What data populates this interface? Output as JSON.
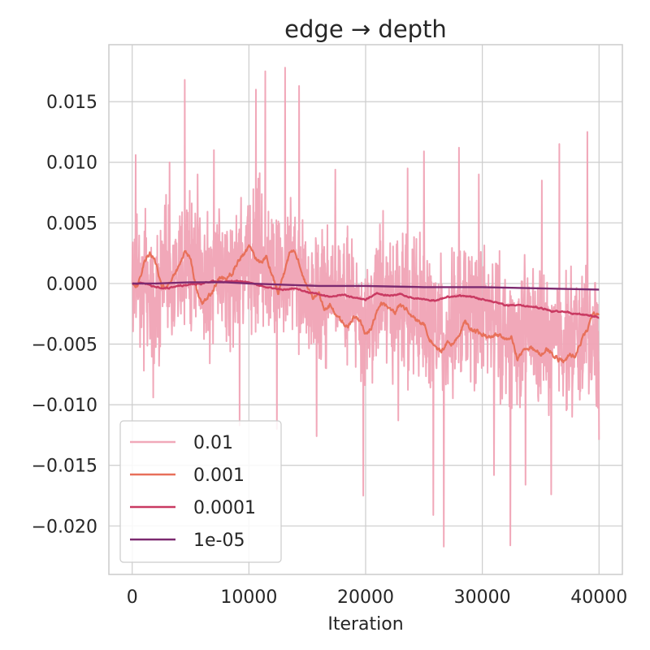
{
  "chart_data": {
    "type": "line",
    "title": "edge → depth",
    "xlabel": "Iteration",
    "ylabel": "",
    "xlim": [
      -2000,
      42000
    ],
    "ylim": [
      -0.024,
      0.0197
    ],
    "xticks": [
      0,
      10000,
      20000,
      30000,
      40000
    ],
    "xtick_labels": [
      "0",
      "10000",
      "20000",
      "30000",
      "40000"
    ],
    "yticks": [
      0.015,
      0.01,
      0.005,
      0.0,
      -0.005,
      -0.01,
      -0.015,
      -0.02
    ],
    "ytick_labels": [
      "0.015",
      "0.010",
      "0.005",
      "0.000",
      "−0.005",
      "−0.010",
      "−0.015",
      "−0.020"
    ],
    "grid": true,
    "legend_position": "lower-left",
    "colors": {
      "grid": "#cccccc",
      "spine": "#cccccc",
      "text": "#262626"
    },
    "series": [
      {
        "name": "0.01",
        "color": "#f0a3b5",
        "alpha": 0.95,
        "width": 2,
        "noise": true,
        "amplitude": 0.0035,
        "spikes": [
          [
            300,
            0.0106
          ],
          [
            1000,
            -0.0072
          ],
          [
            1800,
            -0.0094
          ],
          [
            3200,
            0.01
          ],
          [
            4500,
            0.0168
          ],
          [
            5600,
            0.009
          ],
          [
            7000,
            0.011
          ],
          [
            9200,
            -0.0117
          ],
          [
            10600,
            0.016
          ],
          [
            11400,
            0.0175
          ],
          [
            12400,
            -0.012
          ],
          [
            13100,
            0.0178
          ],
          [
            14300,
            0.0163
          ],
          [
            15800,
            -0.0126
          ],
          [
            17400,
            0.0094
          ],
          [
            19800,
            -0.0175
          ],
          [
            21500,
            0.006
          ],
          [
            22800,
            -0.0113
          ],
          [
            23600,
            0.0095
          ],
          [
            25000,
            0.0109
          ],
          [
            25800,
            -0.0191
          ],
          [
            26700,
            -0.0217
          ],
          [
            28000,
            0.0112
          ],
          [
            29700,
            0.009
          ],
          [
            31000,
            -0.0158
          ],
          [
            32400,
            -0.0216
          ],
          [
            33700,
            -0.0166
          ],
          [
            35100,
            0.0085
          ],
          [
            35900,
            -0.0174
          ],
          [
            36600,
            0.0115
          ],
          [
            37700,
            -0.011
          ],
          [
            39000,
            0.0125
          ],
          [
            40000,
            -0.0129
          ]
        ],
        "points": [
          [
            0,
            0.0
          ],
          [
            1000,
            0.0005
          ],
          [
            2000,
            -0.0005
          ],
          [
            3000,
            0.0006
          ],
          [
            4000,
            0.0002
          ],
          [
            5000,
            0.0016
          ],
          [
            6000,
            0.0007
          ],
          [
            7000,
            -0.0002
          ],
          [
            8000,
            0.0003
          ],
          [
            9000,
            0.0012
          ],
          [
            10000,
            0.0013
          ],
          [
            11000,
            0.0028
          ],
          [
            12000,
            0.0006
          ],
          [
            13000,
            0.0014
          ],
          [
            14000,
            0.0012
          ],
          [
            15000,
            -0.0008
          ],
          [
            16000,
            -0.0013
          ],
          [
            17000,
            -0.0006
          ],
          [
            18000,
            -0.0017
          ],
          [
            19000,
            -0.0015
          ],
          [
            20000,
            -0.0032
          ],
          [
            21000,
            -0.0013
          ],
          [
            22000,
            -0.0016
          ],
          [
            23000,
            -0.0013
          ],
          [
            24000,
            -0.0024
          ],
          [
            25000,
            -0.0026
          ],
          [
            26000,
            -0.0034
          ],
          [
            27000,
            -0.0042
          ],
          [
            28000,
            -0.0025
          ],
          [
            29000,
            -0.0022
          ],
          [
            30000,
            -0.0028
          ],
          [
            31000,
            -0.0031
          ],
          [
            32000,
            -0.0042
          ],
          [
            33000,
            -0.0044
          ],
          [
            34000,
            -0.0038
          ],
          [
            35000,
            -0.0047
          ],
          [
            36000,
            -0.0052
          ],
          [
            37000,
            -0.0044
          ],
          [
            38000,
            -0.0046
          ],
          [
            39000,
            -0.0041
          ],
          [
            40000,
            -0.0045
          ]
        ]
      },
      {
        "name": "0.001",
        "color": "#e8705a",
        "alpha": 1,
        "width": 2.2,
        "noise": true,
        "amplitude": 0.0004,
        "points": [
          [
            0,
            0.0
          ],
          [
            500,
            -0.0002
          ],
          [
            1000,
            0.0017
          ],
          [
            1500,
            0.0025
          ],
          [
            2000,
            0.0017
          ],
          [
            2500,
            -0.0002
          ],
          [
            3000,
            -0.0003
          ],
          [
            3500,
            0.0006
          ],
          [
            4000,
            0.0014
          ],
          [
            4500,
            0.0027
          ],
          [
            5000,
            0.0021
          ],
          [
            5500,
            -0.0005
          ],
          [
            6000,
            -0.0017
          ],
          [
            6500,
            -0.0012
          ],
          [
            7000,
            -0.0004
          ],
          [
            7500,
            0.0005
          ],
          [
            8000,
            0.0004
          ],
          [
            8500,
            0.0008
          ],
          [
            9000,
            0.0017
          ],
          [
            9500,
            0.0023
          ],
          [
            10000,
            0.003
          ],
          [
            10500,
            0.0023
          ],
          [
            11000,
            0.0017
          ],
          [
            11500,
            0.0022
          ],
          [
            12000,
            0.0007
          ],
          [
            12500,
            -0.0007
          ],
          [
            13000,
            0.0008
          ],
          [
            13500,
            0.0025
          ],
          [
            14000,
            0.0026
          ],
          [
            14500,
            0.0011
          ],
          [
            15000,
            -0.0005
          ],
          [
            15500,
            -0.0012
          ],
          [
            16000,
            -0.0008
          ],
          [
            16500,
            -0.0021
          ],
          [
            17000,
            -0.0018
          ],
          [
            17500,
            -0.0028
          ],
          [
            18000,
            -0.0031
          ],
          [
            18500,
            -0.0036
          ],
          [
            19000,
            -0.0028
          ],
          [
            19500,
            -0.003
          ],
          [
            20000,
            -0.0042
          ],
          [
            20500,
            -0.0037
          ],
          [
            21000,
            -0.0021
          ],
          [
            21500,
            -0.0016
          ],
          [
            22000,
            -0.002
          ],
          [
            22500,
            -0.0024
          ],
          [
            23000,
            -0.0018
          ],
          [
            23500,
            -0.0021
          ],
          [
            24000,
            -0.0028
          ],
          [
            24500,
            -0.0031
          ],
          [
            25000,
            -0.0033
          ],
          [
            25500,
            -0.0046
          ],
          [
            26000,
            -0.0053
          ],
          [
            26500,
            -0.0057
          ],
          [
            27000,
            -0.0049
          ],
          [
            27500,
            -0.005
          ],
          [
            28000,
            -0.0042
          ],
          [
            28500,
            -0.0032
          ],
          [
            29000,
            -0.0037
          ],
          [
            29500,
            -0.004
          ],
          [
            30000,
            -0.0041
          ],
          [
            30500,
            -0.0046
          ],
          [
            31000,
            -0.0043
          ],
          [
            31500,
            -0.0042
          ],
          [
            32000,
            -0.0045
          ],
          [
            32500,
            -0.0044
          ],
          [
            33000,
            -0.0062
          ],
          [
            33500,
            -0.0056
          ],
          [
            34000,
            -0.0052
          ],
          [
            34500,
            -0.0055
          ],
          [
            35000,
            -0.0058
          ],
          [
            35500,
            -0.0054
          ],
          [
            36000,
            -0.0057
          ],
          [
            36500,
            -0.0063
          ],
          [
            37000,
            -0.0064
          ],
          [
            37500,
            -0.0057
          ],
          [
            38000,
            -0.0061
          ],
          [
            38500,
            -0.0047
          ],
          [
            39000,
            -0.0038
          ],
          [
            39500,
            -0.0026
          ],
          [
            40000,
            -0.0027
          ]
        ]
      },
      {
        "name": "0.0001",
        "color": "#c93a62",
        "alpha": 1,
        "width": 2.4,
        "noise": true,
        "amplitude": 0.00012,
        "points": [
          [
            0,
            0.0
          ],
          [
            1000,
            0.0
          ],
          [
            2000,
            -0.0003
          ],
          [
            3000,
            -0.0004
          ],
          [
            4000,
            -0.0002
          ],
          [
            5000,
            -0.0001
          ],
          [
            6000,
            0.0
          ],
          [
            7000,
            0.0002
          ],
          [
            8000,
            0.0001
          ],
          [
            9000,
            0.0002
          ],
          [
            10000,
            0.0001
          ],
          [
            11000,
            -0.0002
          ],
          [
            12000,
            -0.0004
          ],
          [
            13000,
            -0.0005
          ],
          [
            14000,
            -0.0004
          ],
          [
            15000,
            -0.0007
          ],
          [
            16000,
            -0.0009
          ],
          [
            17000,
            -0.0011
          ],
          [
            18000,
            -0.0009
          ],
          [
            19000,
            -0.0012
          ],
          [
            20000,
            -0.0013
          ],
          [
            21000,
            -0.0008
          ],
          [
            22000,
            -0.001
          ],
          [
            23000,
            -0.0009
          ],
          [
            24000,
            -0.0012
          ],
          [
            25000,
            -0.0013
          ],
          [
            26000,
            -0.0014
          ],
          [
            27000,
            -0.0011
          ],
          [
            28000,
            -0.001
          ],
          [
            29000,
            -0.0011
          ],
          [
            30000,
            -0.0013
          ],
          [
            31000,
            -0.0015
          ],
          [
            32000,
            -0.0018
          ],
          [
            33000,
            -0.0018
          ],
          [
            34000,
            -0.0019
          ],
          [
            35000,
            -0.002
          ],
          [
            36000,
            -0.0023
          ],
          [
            37000,
            -0.0023
          ],
          [
            38000,
            -0.0025
          ],
          [
            39000,
            -0.0026
          ],
          [
            40000,
            -0.0028
          ]
        ]
      },
      {
        "name": "1e-05",
        "color": "#7c2a70",
        "alpha": 1,
        "width": 2.4,
        "noise": false,
        "amplitude": 0,
        "points": [
          [
            0,
            0.0
          ],
          [
            2000,
            0.0
          ],
          [
            5000,
            0.0001
          ],
          [
            8000,
            0.0001
          ],
          [
            10000,
            0.0
          ],
          [
            13000,
            -0.0001
          ],
          [
            16000,
            -0.0002
          ],
          [
            20000,
            -0.0002
          ],
          [
            25000,
            -0.0003
          ],
          [
            30000,
            -0.0003
          ],
          [
            35000,
            -0.0004
          ],
          [
            40000,
            -0.0005
          ]
        ]
      }
    ]
  }
}
